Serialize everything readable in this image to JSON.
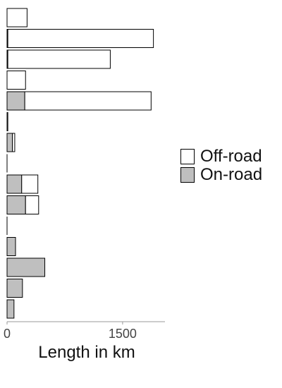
{
  "chart_data": {
    "type": "bar",
    "orientation": "horizontal",
    "stacked": true,
    "xlabel": "Length in km",
    "x_ticks": [
      "0",
      "1500"
    ],
    "xlim": [
      0,
      2050
    ],
    "legend_position": "right",
    "series": [
      {
        "name": "On-road",
        "color": "#bfbfbf",
        "values": [
          0,
          10,
          10,
          0,
          230,
          10,
          70,
          0,
          190,
          240,
          0,
          110,
          490,
          200,
          90
        ]
      },
      {
        "name": "Off-road",
        "color": "#ffffff",
        "values": [
          260,
          1890,
          1330,
          240,
          1640,
          0,
          30,
          0,
          210,
          170,
          0,
          0,
          0,
          0,
          0
        ]
      }
    ]
  }
}
